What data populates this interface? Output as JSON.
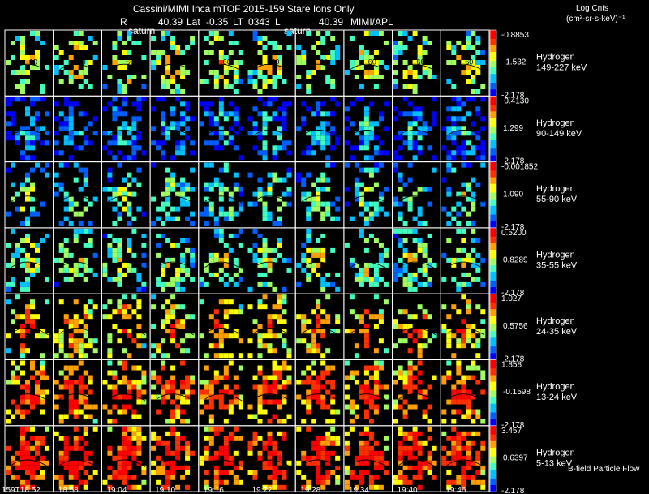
{
  "header": {
    "title": "Cassini/MIMI Inca mTOF  2015-159    Stare    Ions Only",
    "r_label": "R",
    "r_value": "40.39",
    "lat_label": "Lat",
    "lat_value": "-0.35",
    "lt_label": "LT",
    "lt_value": "0343",
    "l_label": "L",
    "l_value": "40.39",
    "institution": "MIMI/APL",
    "saturn_label_1": "saturn",
    "saturn_label_2": "saturn"
  },
  "units": {
    "line1": "Log Cnts",
    "line2": "(cm²-sr-s-keV)⁻¹"
  },
  "footer": {
    "legend_note": "B-field  Particle Flow"
  },
  "chart_data": {
    "type": "heatmap",
    "description_grid": "7 energy channels x 10 time frames of ENA images",
    "times": [
      "159T18:52",
      "18:58",
      "19:04",
      "19:10",
      "19:16",
      "19:22",
      "19:28",
      "19:34",
      "19:40",
      "19:46"
    ],
    "channels": [
      {
        "species": "Hydrogen",
        "energy": "149-227 keV",
        "cmax": "-0.8853",
        "cmid": "-1.532",
        "cmin": "-2.178",
        "level": 0.45,
        "density": 0.55
      },
      {
        "species": "Hydrogen",
        "energy": "90-149 keV",
        "cmax": "-0.4130",
        "cmid": "1.299",
        "cmin": "-2.178",
        "level": 0.12,
        "density": 0.7
      },
      {
        "species": "Hydrogen",
        "energy": "55-90 keV",
        "cmax": "-0.001852",
        "cmid": "1.090",
        "cmin": "-2.178",
        "level": 0.3,
        "density": 0.5
      },
      {
        "species": "Hydrogen",
        "energy": "35-55 keV",
        "cmax": "0.5200",
        "cmid": "0.8289",
        "cmin": "-2.178",
        "level": 0.38,
        "density": 0.55
      },
      {
        "species": "Hydrogen",
        "energy": "24-35 keV",
        "cmax": "1.027",
        "cmid": "0.5756",
        "cmin": "-2.178",
        "level": 0.6,
        "density": 0.55
      },
      {
        "species": "Hydrogen",
        "energy": "13-24 keV",
        "cmax": "1.858",
        "cmid": "-0.1598",
        "cmin": "-2.178",
        "level": 0.72,
        "density": 0.7
      },
      {
        "species": "Hydrogen",
        "energy": "5-13 keV",
        "cmax": "3.457",
        "cmid": "0.6397",
        "cmin": "-2.178",
        "level": 0.8,
        "density": 0.75
      }
    ],
    "annotation_label": "60",
    "colorscale": [
      "#0000ff",
      "#0060ff",
      "#00c0ff",
      "#40ffc0",
      "#a0ff60",
      "#ffff00",
      "#ffa000",
      "#ff3000",
      "#ff0000"
    ]
  }
}
